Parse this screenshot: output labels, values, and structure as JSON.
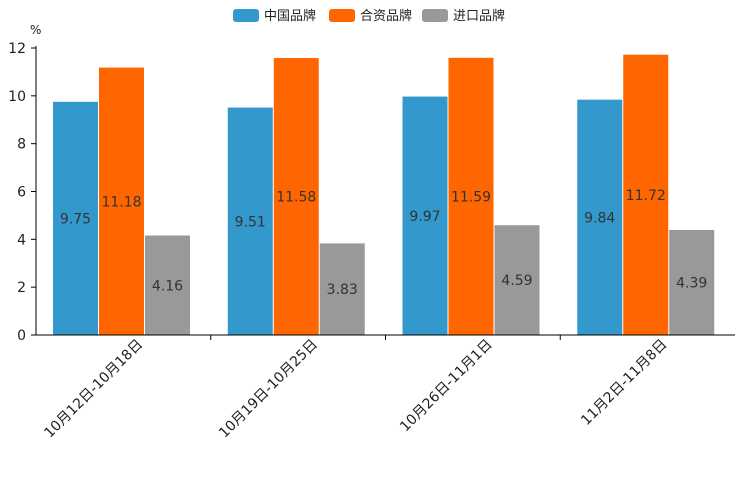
{
  "chart_data": {
    "type": "bar",
    "unit_label": "%",
    "categories": [
      "10月12日-10月18日",
      "10月19日-10月25日",
      "10月26日-11月1日",
      "11月2日-11月8日"
    ],
    "series": [
      {
        "name": "中国品牌",
        "color": "#3399cc",
        "values": [
          9.75,
          9.51,
          9.97,
          9.84
        ]
      },
      {
        "name": "合资品牌",
        "color": "#ff6600",
        "values": [
          11.18,
          11.58,
          11.59,
          11.72
        ]
      },
      {
        "name": "进口品牌",
        "color": "#999999",
        "values": [
          4.16,
          3.83,
          4.59,
          4.39
        ]
      }
    ],
    "value_labels": [
      [
        "9.75",
        "9.51",
        "9.97",
        "9.84"
      ],
      [
        "11.18",
        "11.58",
        "11.59",
        "11.72"
      ],
      [
        "4.16",
        "3.83",
        "4.59",
        "4.39"
      ]
    ],
    "ylim": [
      0,
      12
    ],
    "yticks": [
      0,
      2,
      4,
      6,
      8,
      10,
      12
    ],
    "ytick_labels": [
      "0",
      "2",
      "4",
      "6",
      "8",
      "10",
      "12"
    ],
    "legend_position": "top-center",
    "grid": false
  }
}
